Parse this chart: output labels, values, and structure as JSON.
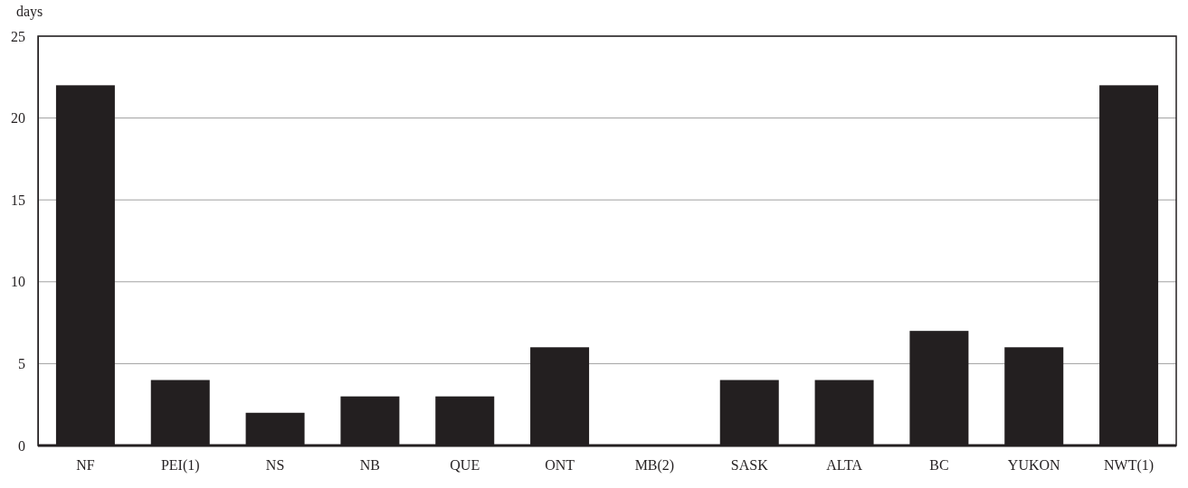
{
  "chart_data": {
    "type": "bar",
    "ylabel": "days",
    "categories": [
      "NF",
      "PEI(1)",
      "NS",
      "NB",
      "QUE",
      "ONT",
      "MB(2)",
      "SASK",
      "ALTA",
      "BC",
      "YUKON",
      "NWT(1)"
    ],
    "values": [
      22,
      4,
      2,
      3,
      3,
      6,
      0,
      4,
      4,
      7,
      6,
      22
    ],
    "color": "#231f20",
    "ylim": [
      0,
      25
    ],
    "yticks": [
      0,
      5,
      10,
      15,
      20,
      25
    ],
    "grid": "y"
  }
}
